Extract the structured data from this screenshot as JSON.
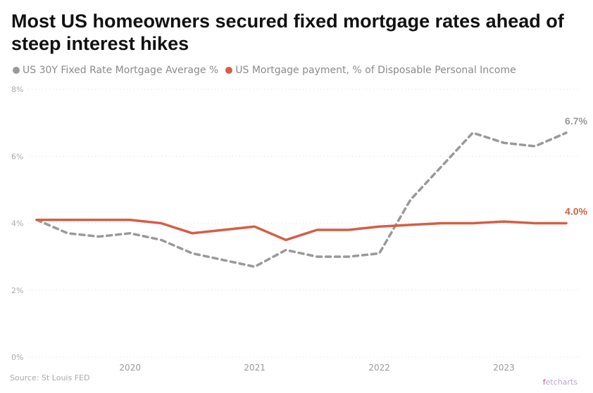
{
  "header": {
    "title": "Most US homeowners secured fixed mortgage rates ahead of steep interest hikes"
  },
  "legend": [
    {
      "label": "US 30Y Fixed Rate Mortgage Average %",
      "color": "#999999"
    },
    {
      "label": "US Mortgage payment, % of Disposable Personal Income",
      "color": "#d45f45"
    }
  ],
  "footer": {
    "source": "Source: St Louis FED",
    "brand_prefix": "f",
    "brand_rest": "etcharts"
  },
  "chart_data": {
    "type": "line",
    "title": "Most US homeowners secured fixed mortgage rates ahead of steep interest hikes",
    "xlabel": "",
    "ylabel": "",
    "x": [
      2019.25,
      2019.5,
      2019.75,
      2020.0,
      2020.25,
      2020.5,
      2020.75,
      2021.0,
      2021.25,
      2021.5,
      2021.75,
      2022.0,
      2022.25,
      2022.5,
      2022.75,
      2023.0,
      2023.25,
      2023.5
    ],
    "x_ticks": [
      2020,
      2021,
      2022,
      2023
    ],
    "x_tick_labels": [
      "2020",
      "2021",
      "2022",
      "2023"
    ],
    "xlim": [
      2019.25,
      2023.5
    ],
    "y_ticks": [
      0,
      2,
      4,
      6,
      8
    ],
    "y_tick_labels": [
      "0%",
      "2%",
      "4%",
      "6%",
      "8%"
    ],
    "ylim": [
      0,
      8
    ],
    "grid": "horizontal dotted",
    "legend_position": "top-left",
    "series": [
      {
        "name": "US 30Y Fixed Rate Mortgage Average %",
        "color": "#999999",
        "style": "dashed",
        "values": [
          4.1,
          3.7,
          3.6,
          3.7,
          3.5,
          3.1,
          2.9,
          2.7,
          3.2,
          3.0,
          3.0,
          3.1,
          4.7,
          5.7,
          6.7,
          6.4,
          6.3,
          6.7
        ],
        "end_label": "6.7%"
      },
      {
        "name": "US Mortgage payment, % of Disposable Personal Income",
        "color": "#d45f45",
        "style": "solid",
        "values": [
          4.1,
          4.1,
          4.1,
          4.1,
          4.0,
          3.7,
          3.8,
          3.9,
          3.5,
          3.8,
          3.8,
          3.9,
          3.95,
          4.0,
          4.0,
          4.05,
          4.0,
          4.0
        ],
        "end_label": "4.0%"
      }
    ]
  }
}
